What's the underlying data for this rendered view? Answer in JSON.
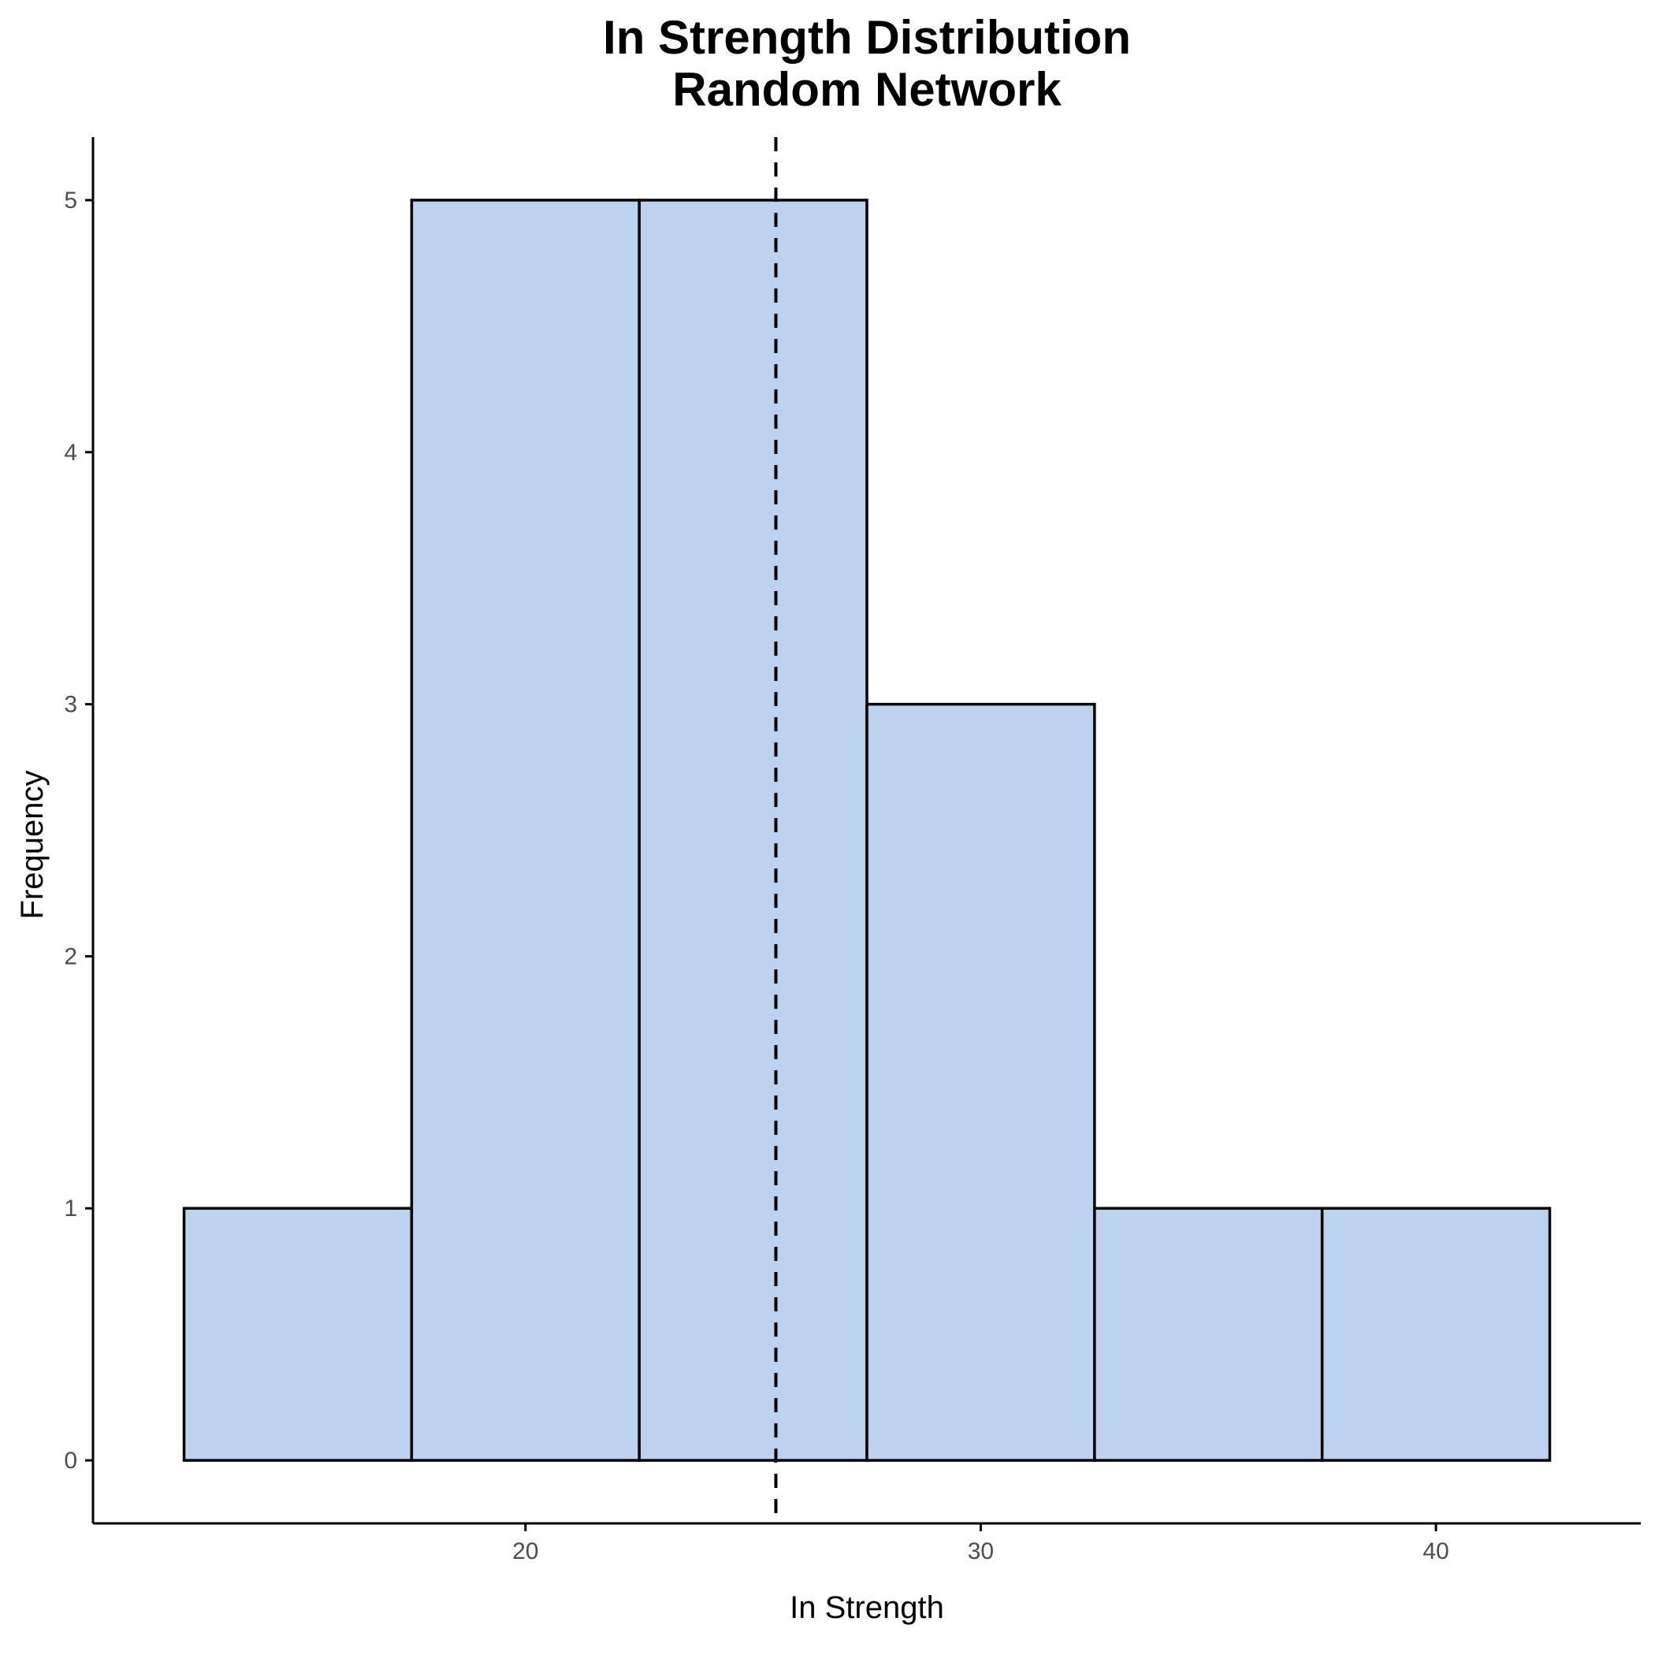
{
  "chart_data": {
    "type": "bar",
    "subtype": "histogram",
    "title": "In Strength Distribution",
    "subtitle": "Random Network",
    "xlabel": "In Strength",
    "ylabel": "Frequency",
    "bin_width": 5,
    "bins": [
      {
        "start": 12.5,
        "end": 17.5,
        "count": 1
      },
      {
        "start": 17.5,
        "end": 22.5,
        "count": 5
      },
      {
        "start": 22.5,
        "end": 27.5,
        "count": 5
      },
      {
        "start": 27.5,
        "end": 32.5,
        "count": 3
      },
      {
        "start": 32.5,
        "end": 37.5,
        "count": 1
      },
      {
        "start": 37.5,
        "end": 42.5,
        "count": 1
      }
    ],
    "mean_line": {
      "x": 25.5,
      "style": "dashed"
    },
    "xlim": [
      10.5,
      44.5
    ],
    "ylim": [
      -0.25,
      5.25
    ],
    "x_ticks": [
      "20",
      "30",
      "40"
    ],
    "y_ticks": [
      "0",
      "1",
      "2",
      "3",
      "4",
      "5"
    ],
    "grid": false,
    "legend": "none",
    "colors": {
      "fill": "#bdd2ee",
      "stroke": "#000000",
      "mean_line": "#000000"
    }
  }
}
